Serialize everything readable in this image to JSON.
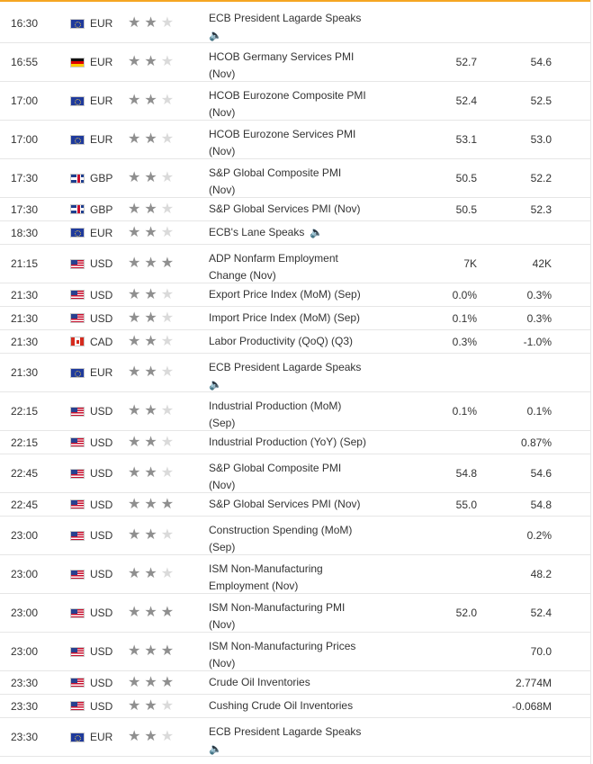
{
  "events": [
    {
      "time": "16:30",
      "currency": "EUR",
      "flag": "eu",
      "stars": 2,
      "event": [
        "ECB President Lagarde Speaks"
      ],
      "speech": "below",
      "actual": "",
      "previous": ""
    },
    {
      "time": "16:55",
      "currency": "EUR",
      "flag": "de",
      "stars": 2,
      "event": [
        "HCOB Germany Services PMI",
        "(Nov)"
      ],
      "speech": "",
      "actual": "52.7",
      "previous": "54.6"
    },
    {
      "time": "17:00",
      "currency": "EUR",
      "flag": "eu",
      "stars": 2,
      "event": [
        "HCOB Eurozone Composite PMI",
        "(Nov)"
      ],
      "speech": "",
      "actual": "52.4",
      "previous": "52.5"
    },
    {
      "time": "17:00",
      "currency": "EUR",
      "flag": "eu",
      "stars": 2,
      "event": [
        "HCOB Eurozone Services PMI",
        "(Nov)"
      ],
      "speech": "",
      "actual": "53.1",
      "previous": "53.0"
    },
    {
      "time": "17:30",
      "currency": "GBP",
      "flag": "gb",
      "stars": 2,
      "event": [
        "S&P Global Composite PMI",
        "(Nov)"
      ],
      "speech": "",
      "actual": "50.5",
      "previous": "52.2"
    },
    {
      "time": "17:30",
      "currency": "GBP",
      "flag": "gb",
      "stars": 2,
      "event": [
        "S&P Global Services PMI (Nov)"
      ],
      "speech": "",
      "actual": "50.5",
      "previous": "52.3"
    },
    {
      "time": "18:30",
      "currency": "EUR",
      "flag": "eu",
      "stars": 2,
      "event": [
        "ECB's Lane Speaks"
      ],
      "speech": "inline",
      "actual": "",
      "previous": ""
    },
    {
      "time": "21:15",
      "currency": "USD",
      "flag": "us",
      "stars": 3,
      "event": [
        "ADP Nonfarm Employment",
        "Change (Nov)"
      ],
      "speech": "",
      "actual": "7K",
      "previous": "42K"
    },
    {
      "time": "21:30",
      "currency": "USD",
      "flag": "us",
      "stars": 2,
      "event": [
        "Export Price Index (MoM) (Sep)"
      ],
      "speech": "",
      "actual": "0.0%",
      "previous": "0.3%"
    },
    {
      "time": "21:30",
      "currency": "USD",
      "flag": "us",
      "stars": 2,
      "event": [
        "Import Price Index (MoM) (Sep)"
      ],
      "speech": "",
      "actual": "0.1%",
      "previous": "0.3%"
    },
    {
      "time": "21:30",
      "currency": "CAD",
      "flag": "ca",
      "stars": 2,
      "event": [
        "Labor Productivity (QoQ) (Q3)"
      ],
      "speech": "",
      "actual": "0.3%",
      "previous": "-1.0%"
    },
    {
      "time": "21:30",
      "currency": "EUR",
      "flag": "eu",
      "stars": 2,
      "event": [
        "ECB President Lagarde Speaks"
      ],
      "speech": "below",
      "actual": "",
      "previous": ""
    },
    {
      "time": "22:15",
      "currency": "USD",
      "flag": "us",
      "stars": 2,
      "event": [
        "Industrial Production (MoM)",
        "(Sep)"
      ],
      "speech": "",
      "actual": "0.1%",
      "previous": "0.1%"
    },
    {
      "time": "22:15",
      "currency": "USD",
      "flag": "us",
      "stars": 2,
      "event": [
        "Industrial Production (YoY) (Sep)"
      ],
      "speech": "",
      "actual": "",
      "previous": "0.87%"
    },
    {
      "time": "22:45",
      "currency": "USD",
      "flag": "us",
      "stars": 2,
      "event": [
        "S&P Global Composite PMI",
        "(Nov)"
      ],
      "speech": "",
      "actual": "54.8",
      "previous": "54.6"
    },
    {
      "time": "22:45",
      "currency": "USD",
      "flag": "us",
      "stars": 3,
      "event": [
        "S&P Global Services PMI (Nov)"
      ],
      "speech": "",
      "actual": "55.0",
      "previous": "54.8"
    },
    {
      "time": "23:00",
      "currency": "USD",
      "flag": "us",
      "stars": 2,
      "event": [
        "Construction Spending (MoM)",
        "(Sep)"
      ],
      "speech": "",
      "actual": "",
      "previous": "0.2%"
    },
    {
      "time": "23:00",
      "currency": "USD",
      "flag": "us",
      "stars": 2,
      "event": [
        "ISM Non-Manufacturing",
        "Employment (Nov)"
      ],
      "speech": "",
      "actual": "",
      "previous": "48.2"
    },
    {
      "time": "23:00",
      "currency": "USD",
      "flag": "us",
      "stars": 3,
      "event": [
        "ISM Non-Manufacturing PMI",
        "(Nov)"
      ],
      "speech": "",
      "actual": "52.0",
      "previous": "52.4"
    },
    {
      "time": "23:00",
      "currency": "USD",
      "flag": "us",
      "stars": 3,
      "event": [
        "ISM Non-Manufacturing Prices",
        "(Nov)"
      ],
      "speech": "",
      "actual": "",
      "previous": "70.0"
    },
    {
      "time": "23:30",
      "currency": "USD",
      "flag": "us",
      "stars": 3,
      "event": [
        "Crude Oil Inventories"
      ],
      "speech": "",
      "actual": "",
      "previous": "2.774M"
    },
    {
      "time": "23:30",
      "currency": "USD",
      "flag": "us",
      "stars": 2,
      "event": [
        "Cushing Crude Oil Inventories"
      ],
      "speech": "",
      "actual": "",
      "previous": "-0.068M"
    },
    {
      "time": "23:30",
      "currency": "EUR",
      "flag": "eu",
      "stars": 2,
      "event": [
        "ECB President Lagarde Speaks"
      ],
      "speech": "below",
      "actual": "",
      "previous": ""
    }
  ],
  "icons": {
    "star": "star-icon",
    "speaker": "speaker-icon"
  },
  "colors": {
    "accent": "#f5a623",
    "star_on": "#8f8f8f",
    "star_off": "#dadada",
    "divider": "#e6e6e6"
  }
}
